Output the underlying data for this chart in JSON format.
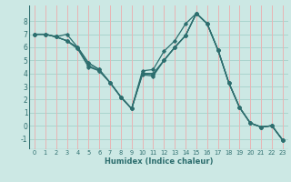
{
  "xlabel": "Humidex (Indice chaleur)",
  "bg_color": "#cce8e4",
  "grid_color_h": "#aad4ce",
  "grid_color_v": "#e8b4b4",
  "line_color": "#2d6e6e",
  "xlim": [
    -0.5,
    23.5
  ],
  "ylim": [
    -1.8,
    9.2
  ],
  "yticks": [
    -1,
    0,
    1,
    2,
    3,
    4,
    5,
    6,
    7,
    8
  ],
  "xticks": [
    0,
    1,
    2,
    3,
    4,
    5,
    6,
    7,
    8,
    9,
    10,
    11,
    12,
    13,
    14,
    15,
    16,
    17,
    18,
    19,
    20,
    21,
    22,
    23
  ],
  "series": [
    [
      7.0,
      7.0,
      6.8,
      7.0,
      6.0,
      4.8,
      4.3,
      3.3,
      2.2,
      1.3,
      4.2,
      4.3,
      5.7,
      6.5,
      7.8,
      8.6,
      7.8,
      5.8,
      3.3,
      1.4,
      0.2,
      -0.1,
      0.0,
      -1.1
    ],
    [
      7.0,
      7.0,
      6.8,
      6.5,
      6.0,
      4.8,
      4.3,
      3.3,
      2.2,
      1.3,
      4.0,
      4.0,
      5.0,
      6.0,
      6.9,
      8.6,
      7.8,
      5.8,
      3.3,
      1.4,
      0.2,
      -0.1,
      0.0,
      -1.1
    ],
    [
      7.0,
      7.0,
      6.8,
      6.5,
      5.9,
      4.6,
      4.2,
      3.3,
      2.2,
      1.3,
      4.0,
      3.9,
      5.0,
      6.0,
      6.9,
      8.6,
      7.8,
      5.8,
      3.3,
      1.4,
      0.2,
      -0.1,
      0.0,
      -1.1
    ],
    [
      7.0,
      7.0,
      6.8,
      6.5,
      5.9,
      4.5,
      4.2,
      3.3,
      2.2,
      1.3,
      3.9,
      3.8,
      5.0,
      6.0,
      6.9,
      8.6,
      7.8,
      5.8,
      3.3,
      1.4,
      0.2,
      -0.1,
      0.0,
      -1.1
    ]
  ]
}
